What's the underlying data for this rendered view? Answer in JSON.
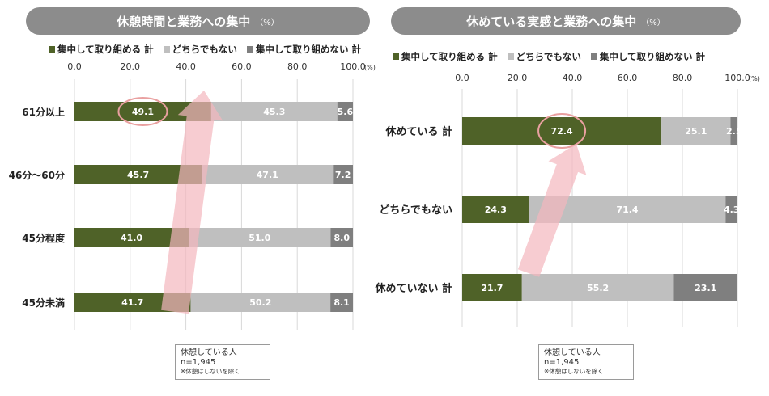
{
  "chart_data": [
    {
      "type": "bar",
      "orientation": "horizontal",
      "stacked": true,
      "title": "休憩時間と業務への集中",
      "title_unit": "（%）",
      "categories": [
        "61分以上",
        "46分～60分",
        "45分程度",
        "45分未満"
      ],
      "series": [
        {
          "name": "集中して取り組める 計",
          "color": "#4f6228",
          "values": [
            49.1,
            45.7,
            41.0,
            41.7
          ]
        },
        {
          "name": "どちらでもない",
          "color": "#bfbfbf",
          "values": [
            45.3,
            47.1,
            51.0,
            50.2
          ]
        },
        {
          "name": "集中して取り組めない 計",
          "color": "#7f7f7f",
          "values": [
            5.6,
            7.2,
            8.0,
            8.1
          ]
        }
      ],
      "xlim": [
        0,
        100
      ],
      "xticks": [
        "0.0",
        "20.0",
        "40.0",
        "60.0",
        "80.0",
        "100.0"
      ],
      "x_unit": "(%)",
      "legend_position": "top",
      "highlight": {
        "category": "61分以上",
        "series": "集中して取り組める 計"
      },
      "note": {
        "line1": "休憩している人",
        "line2": "n=1,945",
        "line3": "※休憩はしないを除く"
      }
    },
    {
      "type": "bar",
      "orientation": "horizontal",
      "stacked": true,
      "title": "休めている実感と業務への集中",
      "title_unit": "（%）",
      "categories": [
        "休めている 計",
        "どちらでもない",
        "休めていない 計"
      ],
      "series": [
        {
          "name": "集中して取り組める 計",
          "color": "#4f6228",
          "values": [
            72.4,
            24.3,
            21.7
          ]
        },
        {
          "name": "どちらでもない",
          "color": "#bfbfbf",
          "values": [
            25.1,
            71.4,
            55.2
          ]
        },
        {
          "name": "集中して取り組めない 計",
          "color": "#7f7f7f",
          "values": [
            2.5,
            4.3,
            23.1
          ]
        }
      ],
      "xlim": [
        0,
        100
      ],
      "xticks": [
        "0.0",
        "20.0",
        "40.0",
        "60.0",
        "80.0",
        "100.0"
      ],
      "x_unit": "(%)",
      "legend_position": "top",
      "highlight": {
        "category": "休めている 計",
        "series": "集中して取り組める 計"
      },
      "note": {
        "line1": "休憩している人",
        "line2": "n=1,945",
        "line3": "※休憩はしないを除く"
      }
    }
  ]
}
